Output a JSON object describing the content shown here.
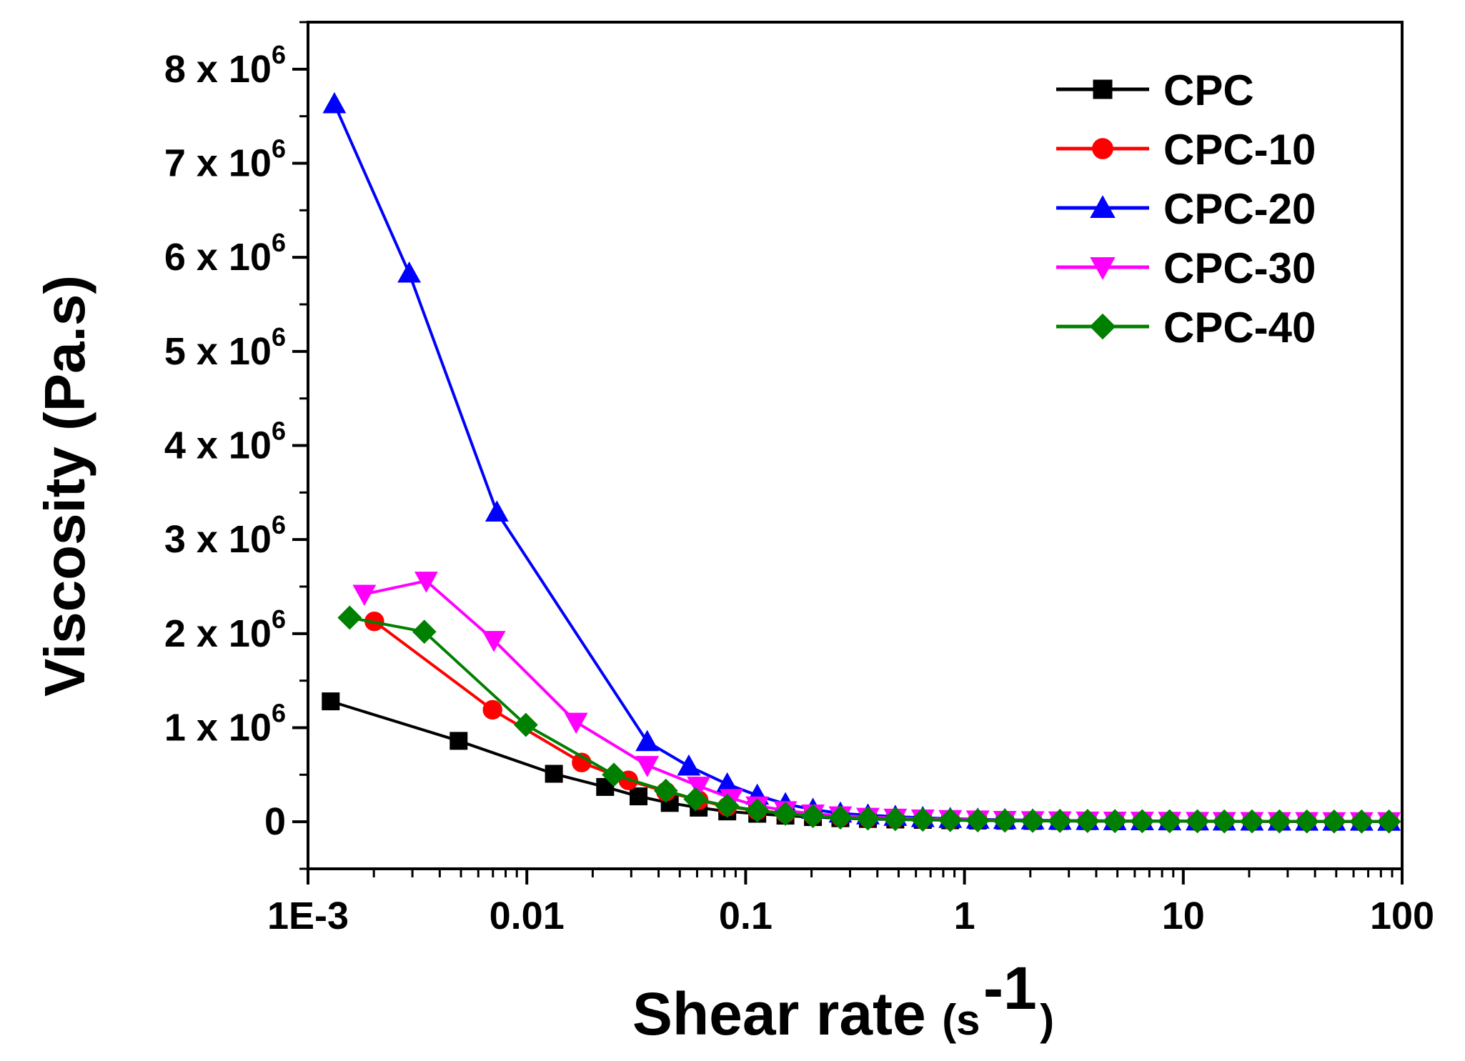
{
  "chart_data": {
    "type": "line",
    "xlabel": "Shear rate",
    "xlabel_unit": "(s",
    "xlabel_unit_sup": "-1",
    "xlabel_unit_close": ")",
    "ylabel": "Viscosity (Pa.s)",
    "x_scale": "log",
    "xlim": [
      0.001,
      100
    ],
    "ylim": [
      -500000,
      8500000
    ],
    "grid": false,
    "legend_position": "top-right",
    "x_ticks": [
      {
        "value": 0.001,
        "label": "1E-3"
      },
      {
        "value": 0.01,
        "label": "0.01"
      },
      {
        "value": 0.1,
        "label": "0.1"
      },
      {
        "value": 1,
        "label": "1"
      },
      {
        "value": 10,
        "label": "10"
      },
      {
        "value": 100,
        "label": "100"
      }
    ],
    "y_ticks": [
      {
        "value": 0,
        "label": "0",
        "exp": ""
      },
      {
        "value": 1000000,
        "label": "1 x 10",
        "exp": "6"
      },
      {
        "value": 2000000,
        "label": "2 x 10",
        "exp": "6"
      },
      {
        "value": 3000000,
        "label": "3 x 10",
        "exp": "6"
      },
      {
        "value": 4000000,
        "label": "4 x 10",
        "exp": "6"
      },
      {
        "value": 5000000,
        "label": "5 x 10",
        "exp": "6"
      },
      {
        "value": 6000000,
        "label": "6 x 10",
        "exp": "6"
      },
      {
        "value": 7000000,
        "label": "7 x 10",
        "exp": "6"
      },
      {
        "value": 8000000,
        "label": "8 x 10",
        "exp": "6"
      }
    ],
    "series": [
      {
        "name": "CPC",
        "color": "#000000",
        "marker": "square",
        "x": [
          0.00127,
          0.00488,
          0.0133,
          0.0228,
          0.0324,
          0.045,
          0.061,
          0.0824,
          0.113,
          0.152,
          0.203,
          0.271,
          0.362,
          0.483,
          0.645,
          0.861,
          1.15,
          1.53,
          2.05,
          2.73,
          3.65,
          4.87,
          6.49,
          8.66,
          11.6,
          15.4,
          20.6,
          27.5,
          36.7,
          48.9,
          65.3,
          87.1
        ],
        "y": [
          1280000,
          860000,
          510000,
          370000,
          270000,
          200000,
          150000,
          110000,
          85000,
          65000,
          50000,
          38000,
          30000,
          24000,
          20000,
          16000,
          13000,
          11000,
          9000,
          8000,
          7000,
          6000,
          5000,
          5000,
          4000,
          4000,
          3500,
          3000,
          3000,
          2500,
          2500,
          2000
        ]
      },
      {
        "name": "CPC-10",
        "color": "#ff0000",
        "marker": "circle",
        "x": [
          0.00201,
          0.00697,
          0.0178,
          0.0291,
          0.0432,
          0.061,
          0.0824,
          0.113,
          0.152,
          0.203,
          0.271,
          0.362,
          0.483,
          0.645,
          0.861,
          1.15,
          1.53,
          2.05,
          2.73,
          3.65,
          4.87,
          6.49,
          8.66,
          11.6,
          15.4,
          20.6,
          27.5,
          36.7,
          48.9,
          65.3,
          87.1
        ],
        "y": [
          2130000,
          1190000,
          630000,
          440000,
          320000,
          230000,
          160000,
          120000,
          90000,
          70000,
          50000,
          40000,
          32000,
          25000,
          20000,
          17000,
          14000,
          12000,
          10000,
          9000,
          8000,
          7000,
          6000,
          5000,
          5000,
          4000,
          4000,
          3500,
          3000,
          3000,
          2500
        ]
      },
      {
        "name": "CPC-20",
        "color": "#0000ff",
        "marker": "triangle-up",
        "x": [
          0.00132,
          0.0029,
          0.0073,
          0.0355,
          0.055,
          0.0824,
          0.113,
          0.152,
          0.203,
          0.271,
          0.362,
          0.483,
          0.645,
          0.861,
          1.15,
          1.53,
          2.05,
          2.73,
          3.65,
          4.87,
          6.49,
          8.66,
          11.6,
          15.4,
          20.6,
          27.5,
          36.7,
          48.9,
          65.3,
          87.1
        ],
        "y": [
          7630000,
          5830000,
          3290000,
          850000,
          590000,
          400000,
          280000,
          190000,
          130000,
          90000,
          70000,
          55000,
          42000,
          33000,
          26000,
          21000,
          17000,
          14000,
          12000,
          10000,
          9000,
          8000,
          7000,
          6000,
          5000,
          5000,
          4000,
          4000,
          3500,
          3000
        ]
      },
      {
        "name": "CPC-30",
        "color": "#ff00ff",
        "marker": "triangle-down",
        "x": [
          0.00181,
          0.00347,
          0.00707,
          0.0168,
          0.0355,
          0.061,
          0.0861,
          0.113,
          0.152,
          0.203,
          0.271,
          0.362,
          0.483,
          0.645,
          0.861,
          1.15,
          1.53,
          2.05,
          2.73,
          3.65,
          4.87,
          6.49,
          8.66,
          11.6,
          15.4,
          20.6,
          27.5,
          36.7,
          48.9,
          65.3,
          87.1
        ],
        "y": [
          2420000,
          2560000,
          1930000,
          1060000,
          600000,
          380000,
          250000,
          170000,
          120000,
          85000,
          65000,
          50000,
          40000,
          32000,
          26000,
          21000,
          17000,
          14000,
          12000,
          10000,
          9000,
          8000,
          7000,
          6000,
          5000,
          5000,
          4000,
          4000,
          3500,
          3000,
          3000
        ]
      },
      {
        "name": "CPC-40",
        "color": "#008000",
        "marker": "diamond",
        "x": [
          0.00155,
          0.0034,
          0.0099,
          0.025,
          0.0432,
          0.059,
          0.0824,
          0.113,
          0.152,
          0.203,
          0.271,
          0.362,
          0.483,
          0.645,
          0.861,
          1.15,
          1.53,
          2.05,
          2.73,
          3.65,
          4.87,
          6.49,
          8.66,
          11.6,
          15.4,
          20.6,
          27.5,
          36.7,
          48.9,
          65.3,
          87.1
        ],
        "y": [
          2170000,
          2020000,
          1030000,
          500000,
          330000,
          240000,
          170000,
          120000,
          85000,
          60000,
          45000,
          35000,
          28000,
          22000,
          18000,
          15000,
          12000,
          10000,
          9000,
          8000,
          7000,
          6000,
          5000,
          5000,
          4000,
          4000,
          3500,
          3000,
          3000,
          2500,
          2500
        ]
      }
    ]
  }
}
